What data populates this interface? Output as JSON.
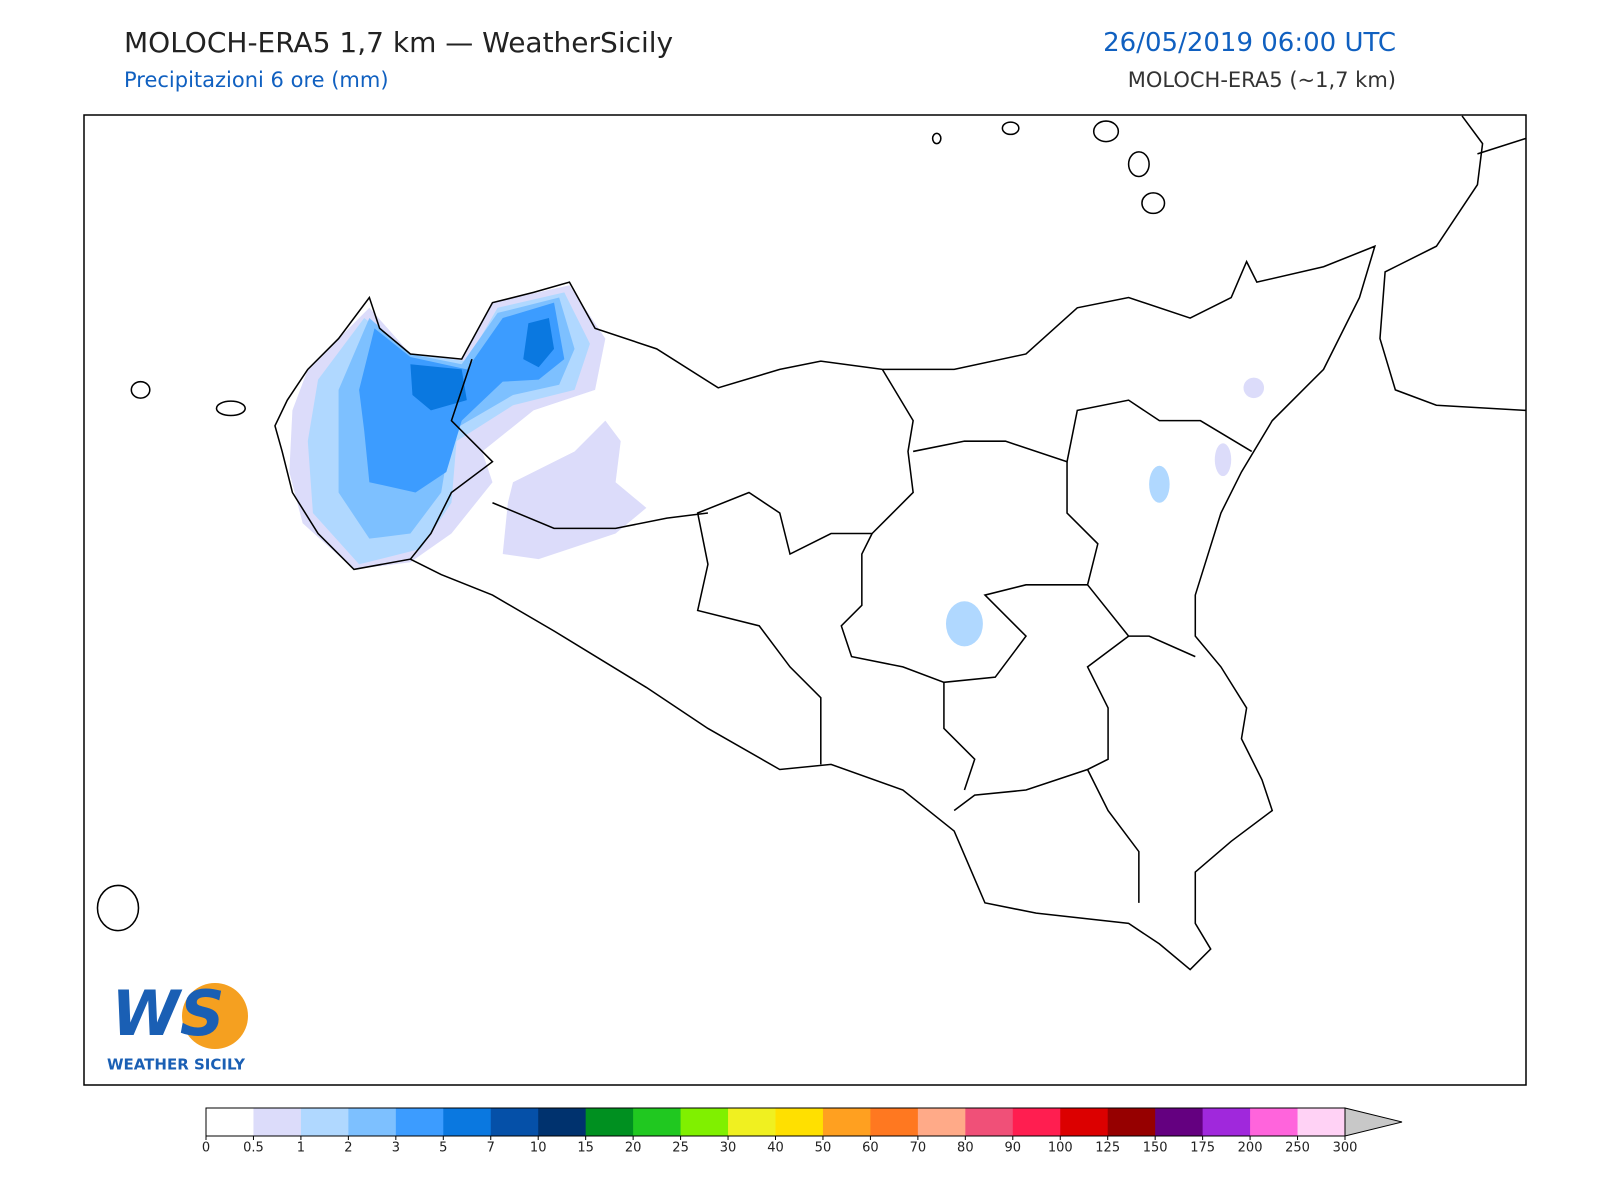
{
  "header": {
    "title": "MOLOCH-ERA5 1,7 km — WeatherSicily",
    "subtitle": "Precipitazioni 6 ore (mm)",
    "datetime": "26/05/2019 06:00 UTC",
    "model": "MOLOCH-ERA5 (~1,7 km)"
  },
  "logo": {
    "mark": "WS",
    "name": "WEATHER SICILY"
  },
  "colorbar": {
    "ticks": [
      0,
      0.5,
      1,
      2,
      3,
      5,
      7,
      10,
      15,
      20,
      25,
      30,
      40,
      50,
      60,
      70,
      80,
      90,
      100,
      125,
      150,
      175,
      200,
      250,
      300
    ],
    "colors": [
      "#ffffff",
      "#dcdcfa",
      "#b0d8ff",
      "#7dc0ff",
      "#3c9cff",
      "#0a78e0",
      "#0550a8",
      "#00326e",
      "#009020",
      "#20c820",
      "#80f000",
      "#f0f020",
      "#ffe000",
      "#ffa020",
      "#ff7820",
      "#ffaa88",
      "#f05078",
      "#ff1e50",
      "#dc0000",
      "#960000",
      "#640080",
      "#a028dc",
      "#ff64dc",
      "#ffd2f5"
    ],
    "extend_color": "#c8c8c8"
  }
}
